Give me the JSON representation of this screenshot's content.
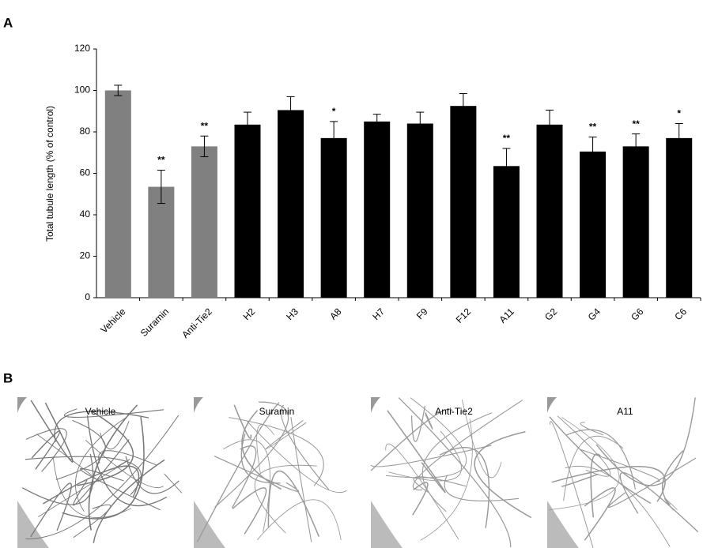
{
  "panel_labels": [
    "A",
    "B"
  ],
  "chart_data": {
    "type": "bar",
    "y_label": "Total tubule length (% of control)",
    "categories": [
      "Vehicle",
      "Suramin",
      "Anti-Tie2",
      "H2",
      "H3",
      "A8",
      "H7",
      "F9",
      "F12",
      "A11",
      "G2",
      "G4",
      "G6",
      "C6"
    ],
    "values": [
      100,
      53.5,
      73,
      83.5,
      90.5,
      77,
      85,
      84,
      92.5,
      63.5,
      83.5,
      70.5,
      73,
      77
    ],
    "errors": [
      2.5,
      8,
      5,
      6,
      6.5,
      8,
      3.5,
      5.5,
      6,
      8.5,
      7,
      7,
      6,
      7
    ],
    "colors": [
      "#808080",
      "#808080",
      "#808080",
      "#000000",
      "#000000",
      "#000000",
      "#000000",
      "#000000",
      "#000000",
      "#000000",
      "#000000",
      "#000000",
      "#000000",
      "#000000"
    ],
    "annotations": [
      null,
      "**",
      "**",
      null,
      null,
      "*",
      null,
      null,
      null,
      "**",
      null,
      "**",
      "**",
      "*"
    ],
    "ylim": [
      0,
      120
    ],
    "yticks": [
      0,
      20,
      40,
      60,
      80,
      100,
      120
    ],
    "grid": false
  },
  "image_panels": [
    "Vehicle",
    "Suramin",
    "Anti-Tie2",
    "A11"
  ]
}
